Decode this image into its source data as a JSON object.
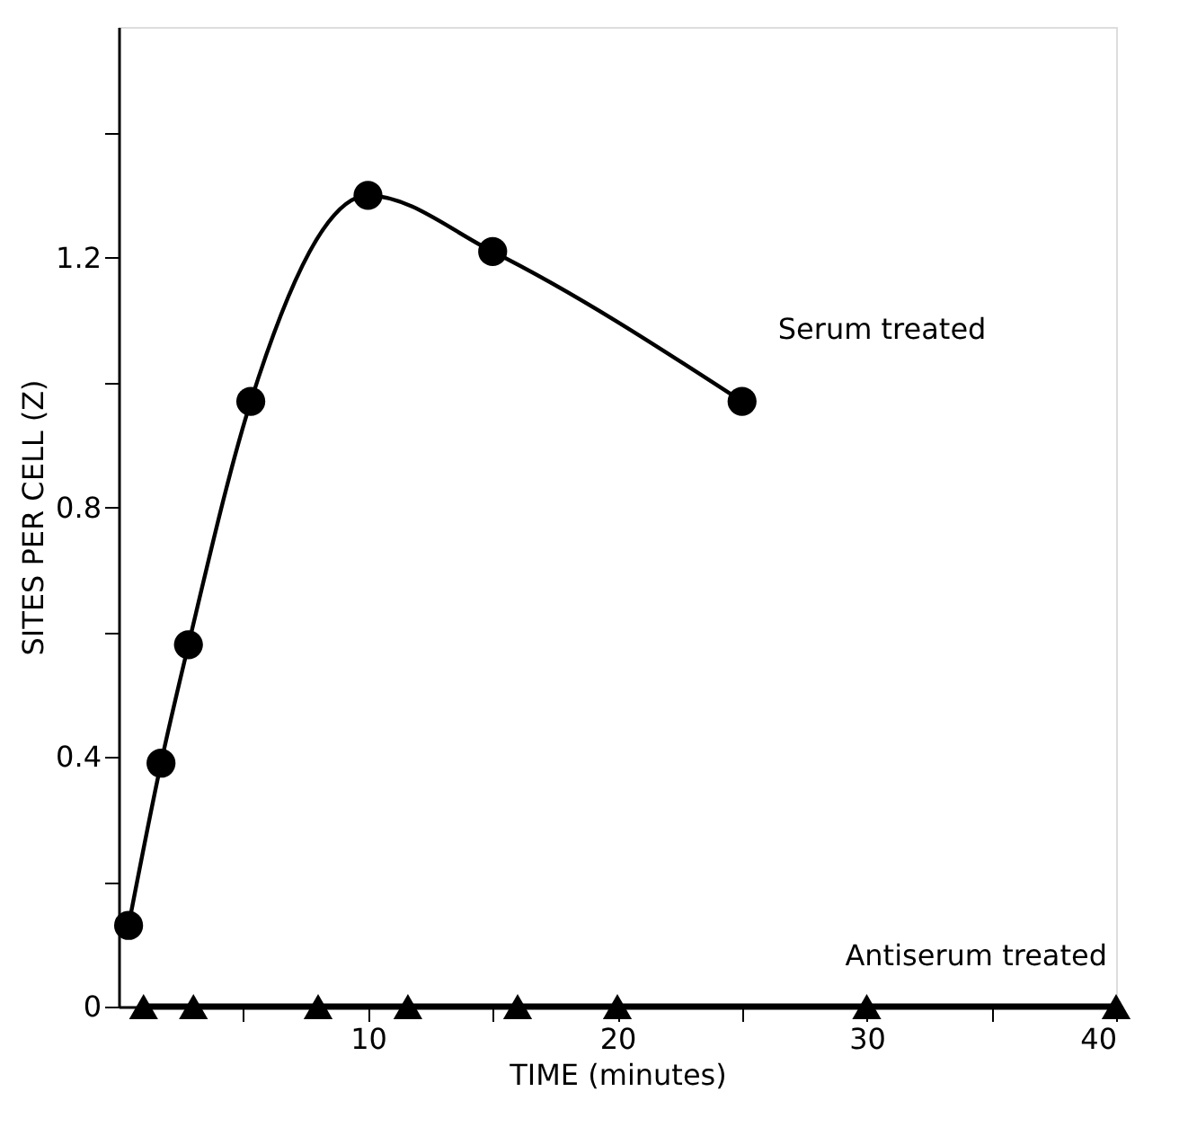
{
  "chart_data": {
    "type": "line",
    "xlabel": "TIME (minutes)",
    "ylabel": "SITES PER CELL (Z)",
    "xlim": [
      0,
      40
    ],
    "ylim": [
      0,
      1.57
    ],
    "xticks": [
      {
        "value": 5,
        "label": null
      },
      10,
      {
        "value": 15,
        "label": null
      },
      20,
      {
        "value": 25,
        "label": null
      },
      30,
      {
        "value": 35,
        "label": null
      },
      40
    ],
    "yticks": [
      0,
      {
        "value": 0.2,
        "label": null
      },
      0.4,
      {
        "value": 0.6,
        "label": null
      },
      0.8,
      {
        "value": 1.0,
        "label": null
      },
      1.2,
      {
        "value": 1.4,
        "label": null
      }
    ],
    "grid": false,
    "legend": false,
    "line_style": "solid",
    "series": [
      {
        "name": "Serum treated",
        "color": "#000000",
        "marker": "circle",
        "x": [
          0.4,
          1.7,
          2.8,
          5.3,
          10.0,
          15.0,
          25.0
        ],
        "values": [
          0.13,
          0.39,
          0.58,
          0.97,
          1.3,
          1.21,
          0.97
        ]
      },
      {
        "name": "Antiserum treated",
        "color": "#000000",
        "marker": "triangle",
        "x": [
          1.0,
          3.0,
          8.0,
          11.6,
          16.0,
          20.0,
          30.0,
          40.0
        ],
        "values": [
          0,
          0,
          0,
          0,
          0,
          0,
          0,
          0
        ]
      }
    ]
  }
}
